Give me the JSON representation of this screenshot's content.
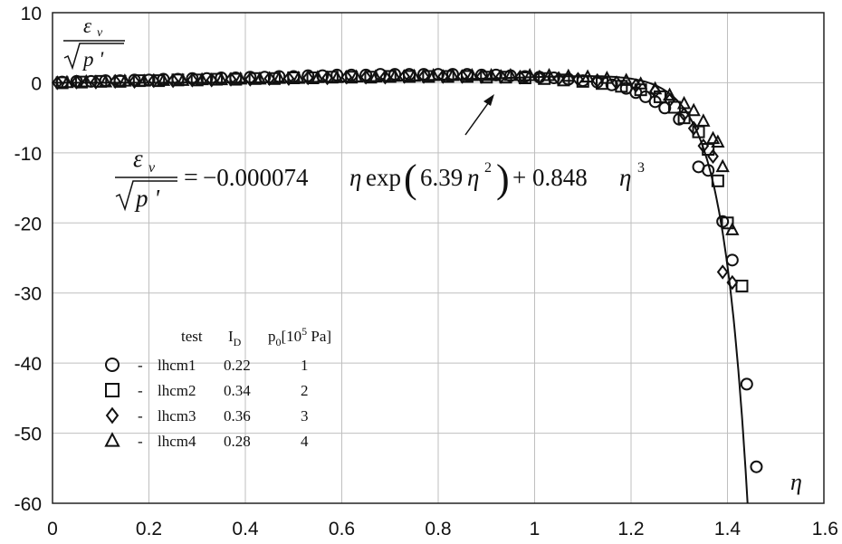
{
  "chart_data": {
    "type": "scatter",
    "xlabel": "η",
    "ylabel_top": "ε",
    "ylabel_sub": "v",
    "ylabel_bottom": "p '",
    "xlim": [
      0,
      1.6
    ],
    "ylim": [
      -60,
      10
    ],
    "x_ticks": [
      0,
      0.2,
      0.4,
      0.6,
      0.8,
      1,
      1.2,
      1.4,
      1.6
    ],
    "x_tick_labels": [
      "0",
      "0.2",
      "0.4",
      "0.6",
      "0.8",
      "1",
      "1.2",
      "1.4",
      "1.6"
    ],
    "y_ticks": [
      10,
      0,
      -10,
      -20,
      -30,
      -40,
      -50,
      -60
    ],
    "y_tick_labels": [
      "10",
      "0",
      "-10",
      "-20",
      "-30",
      "-40",
      "-50",
      "-60"
    ],
    "grid": true,
    "fit": {
      "equation_coefficient": "−0.000074",
      "equation_middle": "6.39",
      "equation_tail": "+ 0.848",
      "a": -7.4e-05,
      "b": 6.39,
      "c": 0.848
    },
    "legend": {
      "position": "bottom-left",
      "header_test": "test",
      "header_id_main": "I",
      "header_id_sub": "D",
      "header_p0_main": "p",
      "header_p0_sub": "0",
      "header_p0_unit_pre": "[10",
      "header_p0_unit_exp": "5",
      "header_p0_unit_post": " Pa]"
    },
    "series": [
      {
        "name": "lhcm1",
        "marker": "circle",
        "id": "0.22",
        "p0": "1",
        "points": [
          [
            0.02,
            0.1
          ],
          [
            0.05,
            0.2
          ],
          [
            0.08,
            0.2
          ],
          [
            0.11,
            0.3
          ],
          [
            0.14,
            0.3
          ],
          [
            0.17,
            0.4
          ],
          [
            0.2,
            0.4
          ],
          [
            0.23,
            0.5
          ],
          [
            0.26,
            0.5
          ],
          [
            0.29,
            0.6
          ],
          [
            0.32,
            0.6
          ],
          [
            0.35,
            0.7
          ],
          [
            0.38,
            0.7
          ],
          [
            0.41,
            0.8
          ],
          [
            0.44,
            0.8
          ],
          [
            0.47,
            0.9
          ],
          [
            0.5,
            0.9
          ],
          [
            0.53,
            1.0
          ],
          [
            0.56,
            1.0
          ],
          [
            0.59,
            1.1
          ],
          [
            0.62,
            1.1
          ],
          [
            0.65,
            1.1
          ],
          [
            0.68,
            1.2
          ],
          [
            0.71,
            1.2
          ],
          [
            0.74,
            1.2
          ],
          [
            0.77,
            1.2
          ],
          [
            0.8,
            1.2
          ],
          [
            0.83,
            1.2
          ],
          [
            0.86,
            1.2
          ],
          [
            0.89,
            1.1
          ],
          [
            0.92,
            1.1
          ],
          [
            0.95,
            1.0
          ],
          [
            0.98,
            0.9
          ],
          [
            1.01,
            0.8
          ],
          [
            1.04,
            0.7
          ],
          [
            1.07,
            0.5
          ],
          [
            1.1,
            0.3
          ],
          [
            1.13,
            0.1
          ],
          [
            1.16,
            -0.3
          ],
          [
            1.19,
            -0.8
          ],
          [
            1.21,
            -1.4
          ],
          [
            1.23,
            -2.0
          ],
          [
            1.25,
            -2.7
          ],
          [
            1.27,
            -3.6
          ],
          [
            1.3,
            -5.2
          ],
          [
            1.34,
            -12.0
          ],
          [
            1.36,
            -12.5
          ],
          [
            1.39,
            -19.8
          ],
          [
            1.41,
            -25.3
          ],
          [
            1.44,
            -43.0
          ],
          [
            1.46,
            -54.8
          ]
        ]
      },
      {
        "name": "lhcm2",
        "marker": "square",
        "id": "0.34",
        "p0": "2",
        "points": [
          [
            0.02,
            0.0
          ],
          [
            0.06,
            0.1
          ],
          [
            0.1,
            0.2
          ],
          [
            0.14,
            0.2
          ],
          [
            0.18,
            0.3
          ],
          [
            0.22,
            0.3
          ],
          [
            0.26,
            0.4
          ],
          [
            0.3,
            0.4
          ],
          [
            0.34,
            0.5
          ],
          [
            0.38,
            0.5
          ],
          [
            0.42,
            0.6
          ],
          [
            0.46,
            0.6
          ],
          [
            0.5,
            0.7
          ],
          [
            0.54,
            0.7
          ],
          [
            0.58,
            0.8
          ],
          [
            0.62,
            0.8
          ],
          [
            0.66,
            0.8
          ],
          [
            0.7,
            0.9
          ],
          [
            0.74,
            0.9
          ],
          [
            0.78,
            0.9
          ],
          [
            0.82,
            0.9
          ],
          [
            0.86,
            0.9
          ],
          [
            0.9,
            0.8
          ],
          [
            0.94,
            0.8
          ],
          [
            0.98,
            0.7
          ],
          [
            1.02,
            0.6
          ],
          [
            1.06,
            0.4
          ],
          [
            1.1,
            0.2
          ],
          [
            1.14,
            -0.1
          ],
          [
            1.18,
            -0.5
          ],
          [
            1.22,
            -1.0
          ],
          [
            1.26,
            -2.0
          ],
          [
            1.29,
            -3.5
          ],
          [
            1.31,
            -5.0
          ],
          [
            1.34,
            -7.0
          ],
          [
            1.36,
            -9.5
          ],
          [
            1.38,
            -14.0
          ],
          [
            1.4,
            -20.0
          ],
          [
            1.43,
            -29.0
          ]
        ]
      },
      {
        "name": "lhcm3",
        "marker": "diamond",
        "id": "0.36",
        "p0": "3",
        "points": [
          [
            0.01,
            0.0
          ],
          [
            0.05,
            0.1
          ],
          [
            0.09,
            0.1
          ],
          [
            0.13,
            0.2
          ],
          [
            0.17,
            0.2
          ],
          [
            0.21,
            0.3
          ],
          [
            0.25,
            0.3
          ],
          [
            0.29,
            0.4
          ],
          [
            0.33,
            0.4
          ],
          [
            0.37,
            0.5
          ],
          [
            0.41,
            0.5
          ],
          [
            0.45,
            0.6
          ],
          [
            0.49,
            0.6
          ],
          [
            0.53,
            0.7
          ],
          [
            0.57,
            0.7
          ],
          [
            0.61,
            0.8
          ],
          [
            0.65,
            0.8
          ],
          [
            0.69,
            0.8
          ],
          [
            0.73,
            0.9
          ],
          [
            0.77,
            0.9
          ],
          [
            0.81,
            0.9
          ],
          [
            0.85,
            0.9
          ],
          [
            0.89,
            0.9
          ],
          [
            0.93,
            0.9
          ],
          [
            0.97,
            0.8
          ],
          [
            1.01,
            0.8
          ],
          [
            1.05,
            0.6
          ],
          [
            1.09,
            0.5
          ],
          [
            1.13,
            0.3
          ],
          [
            1.17,
            0.0
          ],
          [
            1.21,
            -0.4
          ],
          [
            1.25,
            -1.2
          ],
          [
            1.28,
            -2.5
          ],
          [
            1.31,
            -4.5
          ],
          [
            1.33,
            -6.5
          ],
          [
            1.35,
            -9.0
          ],
          [
            1.37,
            -10.5
          ],
          [
            1.39,
            -27.0
          ],
          [
            1.41,
            -28.5
          ]
        ]
      },
      {
        "name": "lhcm4",
        "marker": "triangle",
        "id": "0.28",
        "p0": "4",
        "points": [
          [
            0.03,
            0.0
          ],
          [
            0.07,
            0.1
          ],
          [
            0.11,
            0.1
          ],
          [
            0.15,
            0.2
          ],
          [
            0.19,
            0.2
          ],
          [
            0.23,
            0.3
          ],
          [
            0.27,
            0.3
          ],
          [
            0.31,
            0.4
          ],
          [
            0.35,
            0.4
          ],
          [
            0.39,
            0.5
          ],
          [
            0.43,
            0.5
          ],
          [
            0.47,
            0.6
          ],
          [
            0.51,
            0.6
          ],
          [
            0.55,
            0.7
          ],
          [
            0.59,
            0.7
          ],
          [
            0.63,
            0.8
          ],
          [
            0.67,
            0.8
          ],
          [
            0.71,
            0.9
          ],
          [
            0.75,
            0.9
          ],
          [
            0.79,
            1.0
          ],
          [
            0.83,
            1.0
          ],
          [
            0.87,
            1.0
          ],
          [
            0.91,
            1.0
          ],
          [
            0.95,
            1.0
          ],
          [
            0.99,
            1.0
          ],
          [
            1.03,
            1.0
          ],
          [
            1.07,
            0.9
          ],
          [
            1.11,
            0.8
          ],
          [
            1.15,
            0.6
          ],
          [
            1.19,
            0.3
          ],
          [
            1.22,
            -0.2
          ],
          [
            1.25,
            -0.9
          ],
          [
            1.28,
            -1.8
          ],
          [
            1.31,
            -3.0
          ],
          [
            1.33,
            -4.0
          ],
          [
            1.35,
            -5.5
          ],
          [
            1.37,
            -8.0
          ],
          [
            1.38,
            -8.5
          ],
          [
            1.39,
            -12.0
          ],
          [
            1.41,
            -21.0
          ]
        ]
      }
    ]
  }
}
